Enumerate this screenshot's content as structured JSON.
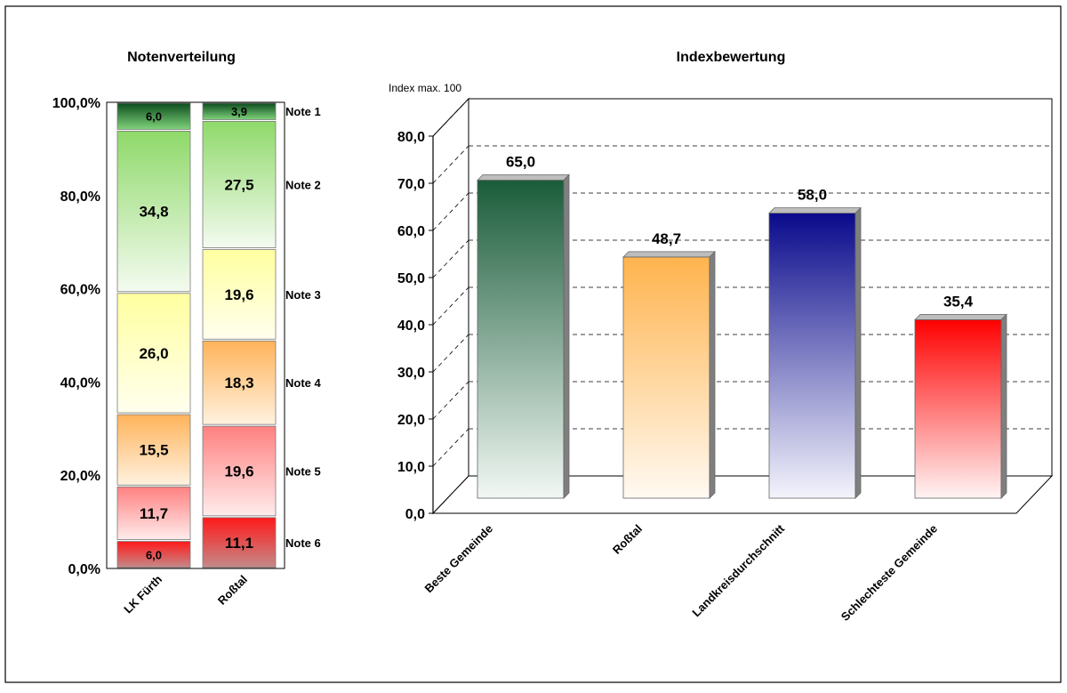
{
  "chart_data": [
    {
      "type": "bar",
      "stacked": true,
      "title": "Notenverteilung",
      "categories": [
        "LK Fürth",
        "Roßtal"
      ],
      "ylim": [
        0,
        100
      ],
      "y_ticks": [
        "0,0%",
        "20,0%",
        "40,0%",
        "60,0%",
        "80,0%",
        "100,0%"
      ],
      "series": [
        {
          "name": "Note 6",
          "values": [
            6.0,
            11.1
          ],
          "labels": [
            "6,0",
            "11,1"
          ],
          "color": "#ff1a1a"
        },
        {
          "name": "Note 5",
          "values": [
            11.7,
            19.6
          ],
          "labels": [
            "11,7",
            "19,6"
          ],
          "color": "#ff8080"
        },
        {
          "name": "Note 4",
          "values": [
            15.5,
            18.3
          ],
          "labels": [
            "15,5",
            "18,3"
          ],
          "color": "#ffb35a"
        },
        {
          "name": "Note 3",
          "values": [
            26.0,
            19.6
          ],
          "labels": [
            "26,0",
            "19,6"
          ],
          "color": "#ffffa0"
        },
        {
          "name": "Note 2",
          "values": [
            34.8,
            27.5
          ],
          "labels": [
            "34,8",
            "27,5"
          ],
          "color": "#8fd96a"
        },
        {
          "name": "Note 1",
          "values": [
            6.0,
            3.9
          ],
          "labels": [
            "6,0",
            "3,9"
          ],
          "color": "#1e6b33"
        }
      ],
      "legend": [
        "Note 1",
        "Note 2",
        "Note 3",
        "Note 4",
        "Note 5",
        "Note 6"
      ],
      "legend_placement": "right"
    },
    {
      "type": "bar",
      "title": "Indexbewertung",
      "unit_label": "Index max. 100",
      "categories": [
        "Beste Gemeinde",
        "Roßtal",
        "Landkreisdurchschnitt",
        "Schlechteste Gemeinde"
      ],
      "values": [
        65.0,
        48.7,
        58.0,
        35.4
      ],
      "value_labels": [
        "65,0",
        "48,7",
        "58,0",
        "35,4"
      ],
      "colors": [
        "#1a5c3a",
        "#ffb34d",
        "#0a0a8c",
        "#ff0000"
      ],
      "ylim": [
        0,
        80
      ],
      "y_ticks": [
        "0,0",
        "10,0",
        "20,0",
        "30,0",
        "40,0",
        "50,0",
        "60,0",
        "70,0",
        "80,0"
      ],
      "grid": true
    }
  ]
}
